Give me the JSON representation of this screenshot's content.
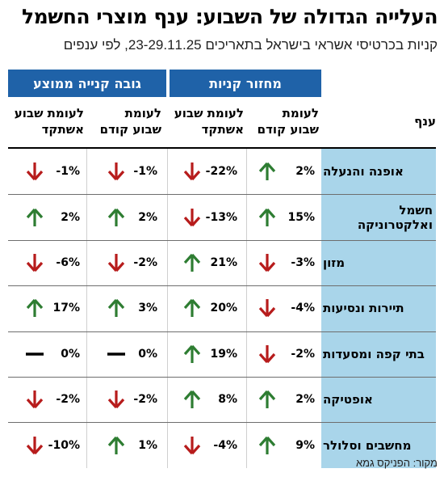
{
  "title": "העלייה הגדולה של השבוע: ענף מוצרי החשמל",
  "subtitle": "קניות בכרטיסי אשראי בישראל בתאריכים 23-29.11.25, לפי ענפים",
  "groups": {
    "purchase_turnover": "מחזור קניות",
    "avg_purchase": "גובה קנייה ממוצע"
  },
  "columns": {
    "category": "ענף",
    "turnover_prev_week": "לעומת\nשבוע קודם",
    "turnover_last_year": "לעומת שבוע\nאשתקד",
    "avg_prev_week": "לעומת\nשבוע קודם",
    "avg_last_year": "לעומת שבוע\nאשתקד"
  },
  "colors": {
    "up": "#2e7d32",
    "down": "#b71c1c",
    "flat": "#000000",
    "header": "#1f62a8",
    "category_bg": "#a9d5ea"
  },
  "rows": [
    {
      "category": "אופנה והנעלה",
      "turnover_prev_week": "2%",
      "turnover_prev_week_dir": "up",
      "turnover_last_year": "-22%",
      "turnover_last_year_dir": "down",
      "avg_prev_week": "-1%",
      "avg_prev_week_dir": "down",
      "avg_last_year": "-1%",
      "avg_last_year_dir": "down"
    },
    {
      "category": "חשמל ואלקטרוניקה",
      "turnover_prev_week": "15%",
      "turnover_prev_week_dir": "up",
      "turnover_last_year": "-13%",
      "turnover_last_year_dir": "down",
      "avg_prev_week": "2%",
      "avg_prev_week_dir": "up",
      "avg_last_year": "2%",
      "avg_last_year_dir": "up"
    },
    {
      "category": "מזון",
      "turnover_prev_week": "-3%",
      "turnover_prev_week_dir": "down",
      "turnover_last_year": "21%",
      "turnover_last_year_dir": "up",
      "avg_prev_week": "-2%",
      "avg_prev_week_dir": "down",
      "avg_last_year": "-6%",
      "avg_last_year_dir": "down"
    },
    {
      "category": "תיירות ונסיעות",
      "turnover_prev_week": "-4%",
      "turnover_prev_week_dir": "down",
      "turnover_last_year": "20%",
      "turnover_last_year_dir": "up",
      "avg_prev_week": "3%",
      "avg_prev_week_dir": "up",
      "avg_last_year": "17%",
      "avg_last_year_dir": "up"
    },
    {
      "category": "בתי קפה ומסעדות",
      "turnover_prev_week": "-2%",
      "turnover_prev_week_dir": "down",
      "turnover_last_year": "19%",
      "turnover_last_year_dir": "up",
      "avg_prev_week": "0%",
      "avg_prev_week_dir": "flat",
      "avg_last_year": "0%",
      "avg_last_year_dir": "flat"
    },
    {
      "category": "אופטיקה",
      "turnover_prev_week": "2%",
      "turnover_prev_week_dir": "up",
      "turnover_last_year": "8%",
      "turnover_last_year_dir": "up",
      "avg_prev_week": "-2%",
      "avg_prev_week_dir": "down",
      "avg_last_year": "-2%",
      "avg_last_year_dir": "down"
    },
    {
      "category": "מחשבים וסלולר",
      "turnover_prev_week": "9%",
      "turnover_prev_week_dir": "up",
      "turnover_last_year": "-4%",
      "turnover_last_year_dir": "down",
      "avg_prev_week": "1%",
      "avg_prev_week_dir": "up",
      "avg_last_year": "-10%",
      "avg_last_year_dir": "down"
    }
  ],
  "source": "מקור: הפניקס גמא"
}
